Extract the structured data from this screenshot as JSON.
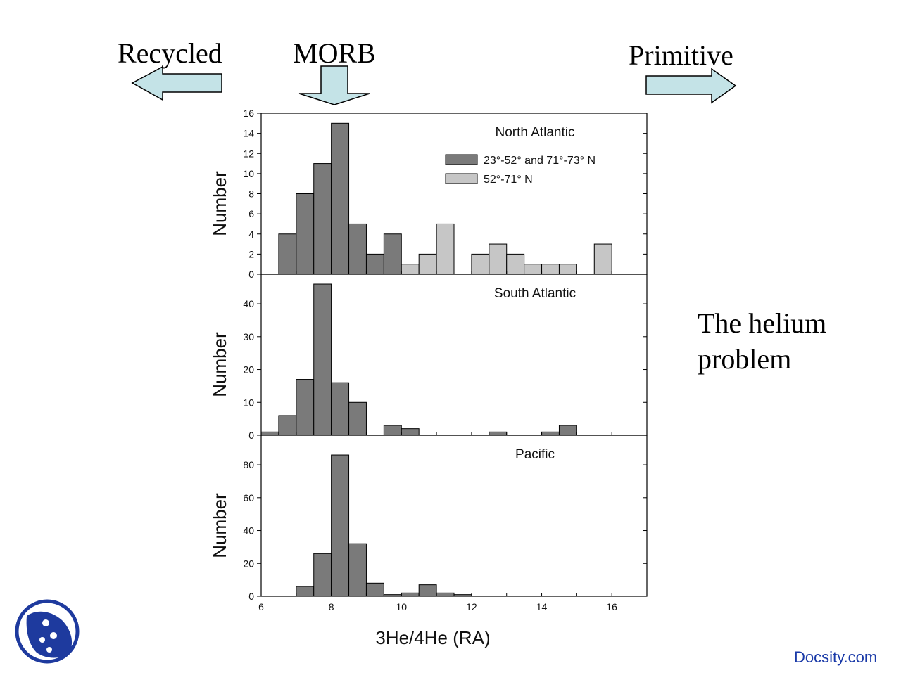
{
  "slide": {
    "arrows": {
      "recycled": "Recycled",
      "morb": "MORB",
      "primitive": "Primitive"
    },
    "side_text": "The helium problem",
    "watermark": "Docsity.com",
    "arrow_color": "#c4e3e7",
    "logo_color": "#1e3a9e",
    "logo_icon": "docsity-logo-icon"
  },
  "chart_data": {
    "type": "bar",
    "bin_width": 0.5,
    "xlim": [
      6,
      17
    ],
    "xlabel": "3He/4He (RA)",
    "x_ticks": [
      6,
      8,
      10,
      12,
      14,
      16
    ],
    "panels": [
      {
        "title": "North Atlantic",
        "ylabel": "Number",
        "ylim": [
          0,
          16
        ],
        "y_ticks": [
          0,
          2,
          4,
          6,
          8,
          10,
          12,
          14,
          16
        ],
        "legend_placement": "top-right",
        "series": [
          {
            "name": "23°-52° and 71°-73° N",
            "color": "#7a7a7a",
            "bins": [
              [
                6.5,
                4
              ],
              [
                7.0,
                8
              ],
              [
                7.5,
                11
              ],
              [
                8.0,
                15
              ],
              [
                8.5,
                5
              ],
              [
                9.0,
                2
              ],
              [
                9.5,
                4
              ]
            ]
          },
          {
            "name": "52°-71° N",
            "color": "#c6c6c6",
            "bins": [
              [
                10.0,
                1
              ],
              [
                10.5,
                2
              ],
              [
                11.0,
                5
              ],
              [
                12.0,
                2
              ],
              [
                12.5,
                3
              ],
              [
                13.0,
                2
              ],
              [
                13.5,
                1
              ],
              [
                14.0,
                1
              ],
              [
                14.5,
                1
              ],
              [
                15.5,
                3
              ]
            ]
          }
        ]
      },
      {
        "title": "South Atlantic",
        "ylabel": "Number",
        "ylim": [
          0,
          49
        ],
        "y_ticks": [
          0,
          10,
          20,
          30,
          40
        ],
        "series": [
          {
            "color": "#7a7a7a",
            "bins": [
              [
                6.0,
                1
              ],
              [
                6.5,
                6
              ],
              [
                7.0,
                17
              ],
              [
                7.5,
                46
              ],
              [
                8.0,
                16
              ],
              [
                8.5,
                10
              ],
              [
                9.5,
                3
              ],
              [
                10.0,
                2
              ],
              [
                12.5,
                1
              ],
              [
                14.0,
                1
              ],
              [
                14.5,
                3
              ]
            ]
          }
        ]
      },
      {
        "title": "Pacific",
        "ylabel": "Number",
        "ylim": [
          0,
          98
        ],
        "y_ticks": [
          0,
          20,
          40,
          60,
          80
        ],
        "series": [
          {
            "color": "#7a7a7a",
            "bins": [
              [
                7.0,
                6
              ],
              [
                7.5,
                26
              ],
              [
                8.0,
                86
              ],
              [
                8.5,
                32
              ],
              [
                9.0,
                8
              ],
              [
                9.5,
                1
              ],
              [
                10.0,
                2
              ],
              [
                10.5,
                7
              ],
              [
                11.0,
                2
              ],
              [
                11.5,
                1
              ]
            ]
          }
        ]
      }
    ]
  }
}
